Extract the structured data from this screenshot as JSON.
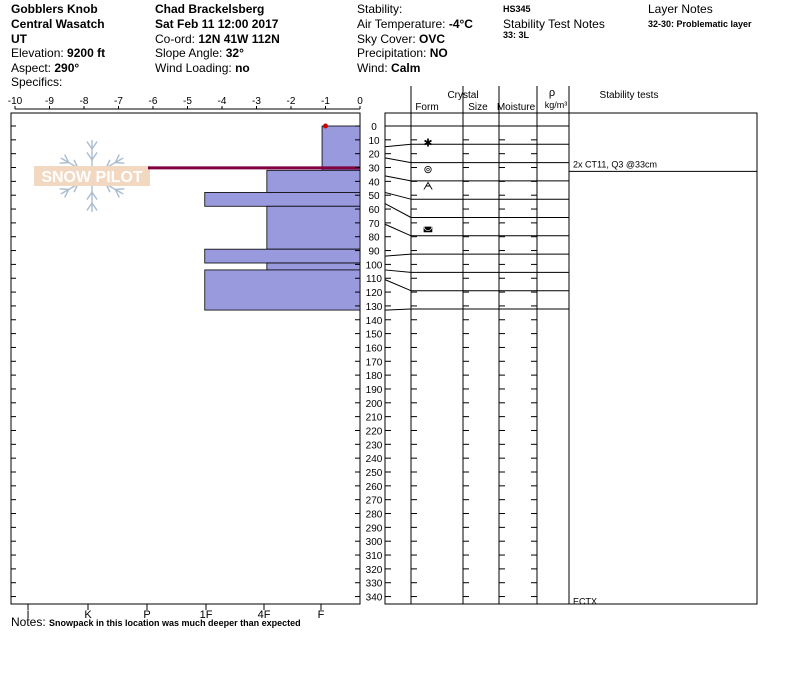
{
  "header": {
    "location": "Gobblers Knob",
    "range": "Central Wasatch",
    "state": "UT",
    "elevation_label": "Elevation:",
    "elevation": "9200 ft",
    "aspect_label": "Aspect:",
    "aspect": "290°",
    "specifics_label": "Specifics:",
    "observer": "Chad Brackelsberg",
    "datetime": "Sat Feb 11 12:00 2017",
    "coord_label": "Co-ord:",
    "coord": "12N 41W 112N",
    "slope_label": "Slope Angle:",
    "slope": "32°",
    "wind_loading_label": "Wind Loading:",
    "wind_loading": "no",
    "stability_label": "Stability:",
    "air_temp_label": "Air Temperature:",
    "air_temp": "-4°C",
    "sky_label": "Sky Cover:",
    "sky": "OVC",
    "precip_label": "Precipitation:",
    "precip": "NO",
    "wind_label": "Wind:",
    "wind": "Calm",
    "hs": "HS345",
    "stability_test_notes_label": "Stability Test Notes",
    "stability_test_notes": "33: 3L",
    "layer_notes_label": "Layer Notes",
    "layer_notes": "32-30: Problematic layer"
  },
  "notes_label": "Notes:",
  "notes": "Snowpack in this location was much deeper than expected",
  "watermark": "SNOW PILOT",
  "colors": {
    "hardness_fill": "#9999dd",
    "problem_layer": "#800040",
    "temp_point": "#cc0000"
  },
  "chart_data": {
    "type": "snow-profile",
    "temperature_axis": {
      "ticks": [
        "-10",
        "-9",
        "-8",
        "-7",
        "-6",
        "-5",
        "-4",
        "-3",
        "-2",
        "-1",
        "0"
      ],
      "range": [
        -10,
        0
      ]
    },
    "depth_axis": {
      "ticks": [
        "0",
        "10",
        "20",
        "30",
        "40",
        "50",
        "60",
        "70",
        "80",
        "90",
        "100",
        "110",
        "120",
        "130",
        "140",
        "150",
        "160",
        "170",
        "180",
        "190",
        "200",
        "210",
        "220",
        "230",
        "240",
        "250",
        "260",
        "270",
        "280",
        "290",
        "300",
        "310",
        "320",
        "330",
        "340"
      ],
      "range": [
        0,
        345
      ]
    },
    "hardness_axis": {
      "ticks": [
        "I",
        "K",
        "P",
        "1F",
        "4F",
        "F"
      ]
    },
    "temperature_profile": [
      {
        "depth": 0,
        "temp": -1
      }
    ],
    "layers": [
      {
        "top": 0,
        "bottom": 32,
        "hardness": -1.1
      },
      {
        "top": 32,
        "bottom": 48,
        "hardness": -2.7
      },
      {
        "top": 48,
        "bottom": 58,
        "hardness": -4.5
      },
      {
        "top": 58,
        "bottom": 89,
        "hardness": -2.7
      },
      {
        "top": 89,
        "bottom": 99,
        "hardness": -4.5
      },
      {
        "top": 99,
        "bottom": 104,
        "hardness": -2.7
      },
      {
        "top": 104,
        "bottom": 133,
        "hardness": -4.5
      }
    ],
    "problem_layer_depth": 31,
    "table_headers": {
      "crystal": "Crystal",
      "form": "Form",
      "size": "Size",
      "moisture": "Moisture",
      "rho": "ρ",
      "density": "kg/m³",
      "stability": "Stability tests"
    },
    "row_boundaries": [
      0,
      15,
      23,
      36,
      48,
      56,
      71,
      94,
      104,
      111,
      133
    ],
    "crystal_forms": [
      {
        "depth": 12,
        "symbol": "✱"
      },
      {
        "depth": 31,
        "symbol": "⊚"
      },
      {
        "depth": 43,
        "symbol": "ᗅ"
      },
      {
        "depth": 72,
        "symbol": "◛"
      }
    ],
    "stability_tests": [
      {
        "depth": 27,
        "label": "2x CT11, Q3 @33cm"
      },
      {
        "depth": 343,
        "label": "ECTX"
      }
    ]
  }
}
